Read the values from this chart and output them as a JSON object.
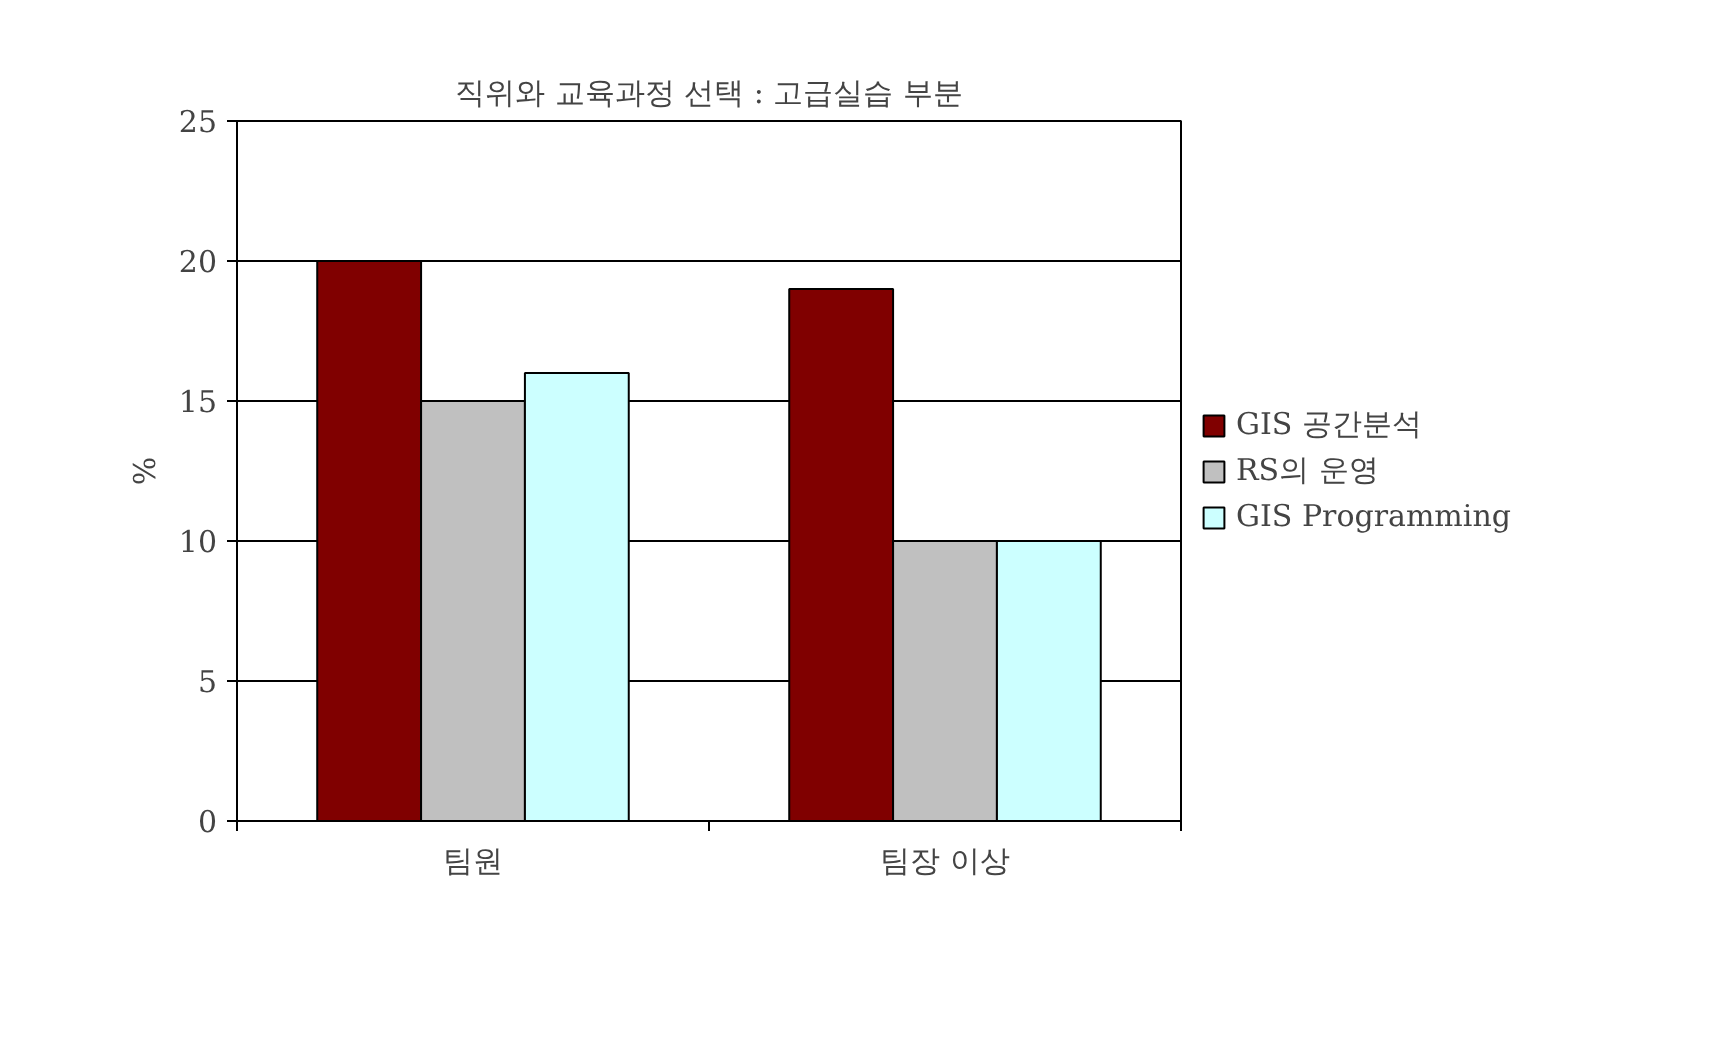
{
  "chart_data": {
    "type": "bar",
    "title": "직위와 교육과정 선택 : 고급실습 부분",
    "ylabel": "%",
    "categories": [
      "팀원",
      "팀장 이상"
    ],
    "series": [
      {
        "name": "GIS 공간분석",
        "color": "#800000",
        "values": [
          20,
          19
        ]
      },
      {
        "name": "RS의 운영",
        "color": "#c0c0c0",
        "values": [
          15,
          10
        ]
      },
      {
        "name": "GIS Programming",
        "color": "#ccffff",
        "values": [
          16,
          10
        ]
      }
    ],
    "ylim": [
      0,
      25
    ],
    "yticks": [
      0,
      5,
      10,
      15,
      20,
      25
    ],
    "grid": "y",
    "legend": "right"
  }
}
